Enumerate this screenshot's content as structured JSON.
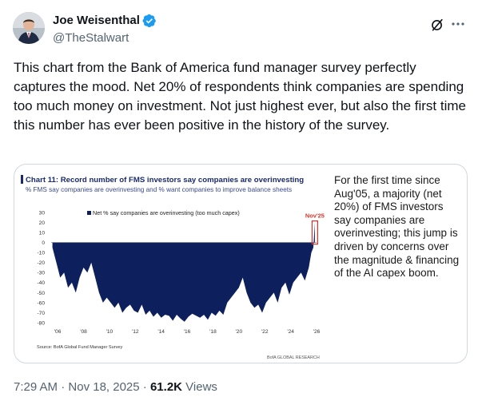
{
  "author": {
    "display_name": "Joe Weisenthal",
    "handle": "@TheStalwart"
  },
  "tweet": {
    "text": "This chart from the Bank of America fund manager survey perfectly captures the mood. Net 20% of respondents think companies are spending too much money on investment. Not just highest ever, but also the first time this number has ever been positive in the history of the survey.",
    "time": "7:29 AM",
    "date": "Nov 18, 2025",
    "separator": "·",
    "views_count": "61.2K",
    "views_label": "Views"
  },
  "media": {
    "side_note": "For the first time since Aug'05, a majority (net 20%) of FMS investors say companies are overinvesting; this jump is driven by concerns over the magnitude & financing of the AI capex boom."
  },
  "colors": {
    "accent": "#1d9bf0",
    "chart_fill": "#0e1f5e",
    "highlight": "#d6342c",
    "title_navy": "#1a2a6c"
  },
  "chart_data": {
    "type": "area",
    "title": "Chart 11: Record number of FMS investors say companies are overinvesting",
    "subtitle": "% FMS say companies are overinvesting and % want companies to improve balance sheets",
    "legend": "Net % say companies are overinvesting (too much capex)",
    "legend_position": "top",
    "annotation": "Nov'25",
    "source": "Source: BofA Global Fund Manager Survey",
    "brand": "BofA GLOBAL RESEARCH",
    "ylim": [
      -80,
      30
    ],
    "xlim": [
      2005.5,
      2026
    ],
    "y_ticks": [
      30,
      20,
      10,
      0,
      -10,
      -20,
      -30,
      -40,
      -50,
      -60,
      -70,
      -80
    ],
    "x_ticks": [
      {
        "value": 2006,
        "label": "'06"
      },
      {
        "value": 2008,
        "label": "'08"
      },
      {
        "value": 2010,
        "label": "'10"
      },
      {
        "value": 2012,
        "label": "'12"
      },
      {
        "value": 2014,
        "label": "'14"
      },
      {
        "value": 2016,
        "label": "'16"
      },
      {
        "value": 2018,
        "label": "'18"
      },
      {
        "value": 2020,
        "label": "'20"
      },
      {
        "value": 2022,
        "label": "'22"
      },
      {
        "value": 2024,
        "label": "'24"
      },
      {
        "value": 2026,
        "label": "'26"
      }
    ],
    "series": [
      {
        "name": "Net % say companies are overinvesting (too much capex)",
        "x": [
          2005.6,
          2005.9,
          2006.2,
          2006.5,
          2006.8,
          2007.1,
          2007.4,
          2007.7,
          2008.0,
          2008.3,
          2008.6,
          2008.9,
          2009.2,
          2009.5,
          2009.8,
          2010.1,
          2010.4,
          2010.7,
          2011.0,
          2011.3,
          2011.6,
          2011.9,
          2012.2,
          2012.5,
          2012.8,
          2013.1,
          2013.4,
          2013.7,
          2014.0,
          2014.3,
          2014.6,
          2014.9,
          2015.2,
          2015.5,
          2015.8,
          2016.1,
          2016.4,
          2016.7,
          2017.0,
          2017.3,
          2017.6,
          2017.9,
          2018.2,
          2018.5,
          2018.8,
          2019.1,
          2019.4,
          2019.7,
          2020.0,
          2020.3,
          2020.6,
          2020.9,
          2021.2,
          2021.5,
          2021.8,
          2022.1,
          2022.4,
          2022.7,
          2023.0,
          2023.3,
          2023.6,
          2023.9,
          2024.2,
          2024.5,
          2024.8,
          2025.1,
          2025.4,
          2025.6,
          2025.75,
          2025.87
        ],
        "values": [
          -5,
          -20,
          -35,
          -30,
          -45,
          -40,
          -50,
          -35,
          -25,
          -30,
          -20,
          -35,
          -50,
          -60,
          -55,
          -60,
          -65,
          -60,
          -70,
          -65,
          -62,
          -68,
          -70,
          -62,
          -72,
          -68,
          -74,
          -70,
          -75,
          -72,
          -73,
          -78,
          -72,
          -76,
          -79,
          -74,
          -71,
          -73,
          -75,
          -72,
          -77,
          -70,
          -73,
          -68,
          -72,
          -60,
          -55,
          -50,
          -45,
          -35,
          -50,
          -60,
          -65,
          -62,
          -70,
          -60,
          -55,
          -50,
          -60,
          -45,
          -40,
          -52,
          -40,
          -35,
          -30,
          -38,
          -25,
          -10,
          -5,
          20
        ]
      }
    ]
  }
}
